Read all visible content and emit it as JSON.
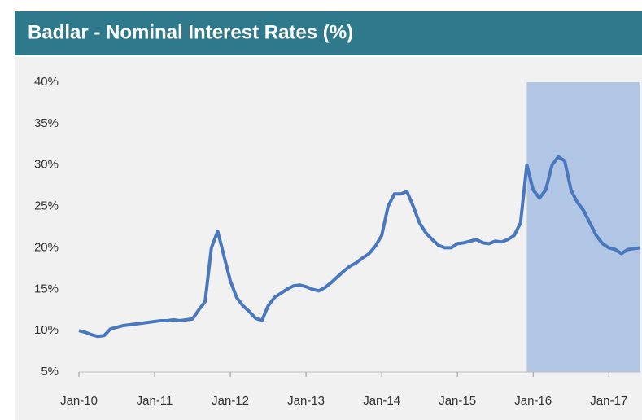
{
  "chart_data": {
    "type": "line",
    "title": "Badlar - Nominal Interest Rates (%)",
    "x": [
      "2010-01",
      "2010-02",
      "2010-03",
      "2010-04",
      "2010-05",
      "2010-06",
      "2010-07",
      "2010-08",
      "2010-09",
      "2010-10",
      "2010-11",
      "2010-12",
      "2011-01",
      "2011-02",
      "2011-03",
      "2011-04",
      "2011-05",
      "2011-06",
      "2011-07",
      "2011-08",
      "2011-09",
      "2011-10",
      "2011-11",
      "2011-12",
      "2012-01",
      "2012-02",
      "2012-03",
      "2012-04",
      "2012-05",
      "2012-06",
      "2012-07",
      "2012-08",
      "2012-09",
      "2012-10",
      "2012-11",
      "2012-12",
      "2013-01",
      "2013-02",
      "2013-03",
      "2013-04",
      "2013-05",
      "2013-06",
      "2013-07",
      "2013-08",
      "2013-09",
      "2013-10",
      "2013-11",
      "2013-12",
      "2014-01",
      "2014-02",
      "2014-03",
      "2014-04",
      "2014-05",
      "2014-06",
      "2014-07",
      "2014-08",
      "2014-09",
      "2014-10",
      "2014-11",
      "2014-12",
      "2015-01",
      "2015-02",
      "2015-03",
      "2015-04",
      "2015-05",
      "2015-06",
      "2015-07",
      "2015-08",
      "2015-09",
      "2015-10",
      "2015-11",
      "2015-12",
      "2016-01",
      "2016-02",
      "2016-03",
      "2016-04",
      "2016-05",
      "2016-06",
      "2016-07",
      "2016-08",
      "2016-09",
      "2016-10",
      "2016-11",
      "2016-12",
      "2017-01",
      "2017-02",
      "2017-03",
      "2017-04",
      "2017-05",
      "2017-06"
    ],
    "series": [
      {
        "name": "Badlar",
        "color": "#4a78be",
        "values": [
          10,
          9.8,
          9.5,
          9.3,
          9.4,
          10.2,
          10.4,
          10.6,
          10.7,
          10.8,
          10.9,
          11,
          11.1,
          11.2,
          11.2,
          11.3,
          11.2,
          11.3,
          11.4,
          12.5,
          13.5,
          20,
          22,
          19,
          16,
          14,
          13,
          12.3,
          11.5,
          11.2,
          13,
          14,
          14.5,
          15,
          15.4,
          15.5,
          15.3,
          15,
          14.8,
          15.2,
          15.8,
          16.5,
          17.2,
          17.8,
          18.2,
          18.8,
          19.3,
          20.2,
          21.5,
          25,
          26.5,
          26.5,
          26.8,
          25,
          23,
          21.8,
          21,
          20.3,
          20,
          20,
          20.5,
          20.6,
          20.8,
          21,
          20.6,
          20.5,
          20.8,
          20.7,
          21,
          21.5,
          23,
          30,
          27,
          26,
          27,
          30,
          31,
          30.5,
          27,
          25.5,
          24.5,
          23,
          21.5,
          20.5,
          20,
          19.8,
          19.3,
          19.8,
          19.9,
          20
        ]
      }
    ],
    "xlim": [
      "2010-01",
      "2017-06"
    ],
    "xticks": [
      {
        "value": "2010-01",
        "label": "Jan-10"
      },
      {
        "value": "2011-01",
        "label": "Jan-11"
      },
      {
        "value": "2012-01",
        "label": "Jan-12"
      },
      {
        "value": "2013-01",
        "label": "Jan-13"
      },
      {
        "value": "2014-01",
        "label": "Jan-14"
      },
      {
        "value": "2015-01",
        "label": "Jan-15"
      },
      {
        "value": "2016-01",
        "label": "Jan-16"
      },
      {
        "value": "2017-01",
        "label": "Jan-17"
      }
    ],
    "ylim": [
      5,
      40
    ],
    "yticks": [
      {
        "value": 5,
        "label": "5%"
      },
      {
        "value": 10,
        "label": "10%"
      },
      {
        "value": 15,
        "label": "15%"
      },
      {
        "value": 20,
        "label": "20%"
      },
      {
        "value": 25,
        "label": "25%"
      },
      {
        "value": 30,
        "label": "30%"
      },
      {
        "value": 35,
        "label": "35%"
      },
      {
        "value": 40,
        "label": "40%"
      }
    ],
    "highlight": {
      "from": "2015-12",
      "to": "2017-06",
      "color": "#b0c6e4"
    },
    "grid": false
  }
}
